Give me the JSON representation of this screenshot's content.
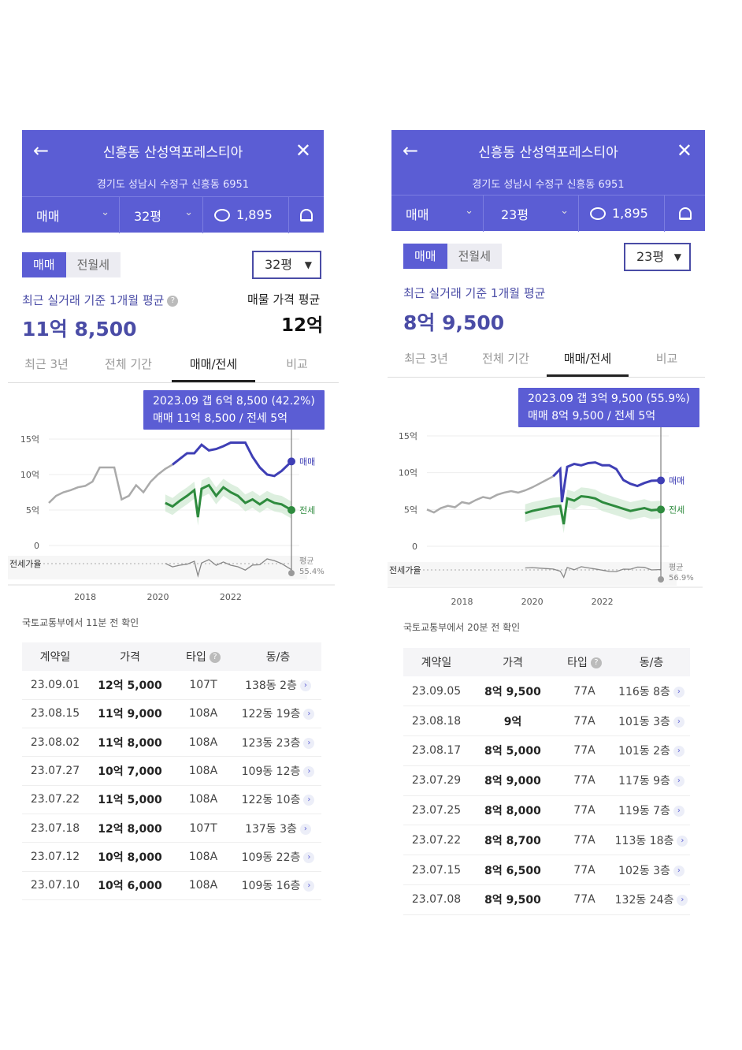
{
  "panels": [
    {
      "header": {
        "title": "신흥동 산성역포레스티아",
        "address": "경기도 성남시 수정구 신흥동 6951",
        "filter_deal": "매매",
        "filter_area": "32평",
        "comment_count": "1,895"
      },
      "toggle": {
        "sale": "매매",
        "lease": "전월세"
      },
      "area_select": "32평",
      "avg_label": "최근 실거래 기준 1개월 평균",
      "avg_price": "11억 8,500",
      "listing_label": "매물 가격 평균",
      "listing_price": "12억",
      "tabs": [
        "최근 3년",
        "전체 기간",
        "매매/전세",
        "비교"
      ],
      "tooltip": {
        "line1": "2023.09  갭 6억 8,500 (42.2%)",
        "line2": "매매 11억 8,500 / 전세 5억"
      },
      "source_note": "국토교통부에서 11분 전 확인",
      "table": {
        "headers": [
          "계약일",
          "가격",
          "타입",
          "동/층"
        ],
        "rows": [
          [
            "23.09.01",
            "12억 5,000",
            "107T",
            "138동 2층"
          ],
          [
            "23.08.15",
            "11억 9,000",
            "108A",
            "122동 19층"
          ],
          [
            "23.08.02",
            "11억 8,000",
            "108A",
            "123동 23층"
          ],
          [
            "23.07.27",
            "10억 7,000",
            "108A",
            "109동 12층"
          ],
          [
            "23.07.22",
            "11억 5,000",
            "108A",
            "122동 10층"
          ],
          [
            "23.07.18",
            "12억 8,000",
            "107T",
            "137동 3층"
          ],
          [
            "23.07.12",
            "10억 8,000",
            "108A",
            "109동 22층"
          ],
          [
            "23.07.10",
            "10억 6,000",
            "108A",
            "109동 16층"
          ]
        ]
      },
      "chart_data": {
        "type": "line",
        "y_tick_labels": [
          "15억",
          "10억",
          "5억",
          "0"
        ],
        "ylim": [
          0,
          15
        ],
        "x_tick_labels": [
          "2018",
          "2020",
          "2022"
        ],
        "ratio_axis_label": "전세가율",
        "ratio_avg_label": "평균",
        "ratio_avg_value": "55.4%",
        "series": [
          {
            "name": "매매",
            "color": "#3f3fb5",
            "x": [
              2017.0,
              2017.2,
              2017.4,
              2017.6,
              2017.8,
              2018.0,
              2018.2,
              2018.4,
              2018.6,
              2018.8,
              2019.0,
              2019.2,
              2019.4,
              2019.6,
              2019.8,
              2020.0,
              2020.2,
              2020.4,
              2020.6,
              2020.8,
              2021.0,
              2021.2,
              2021.4,
              2021.6,
              2021.8,
              2022.0,
              2022.2,
              2022.4,
              2022.6,
              2022.8,
              2023.0,
              2023.2,
              2023.4,
              2023.67
            ],
            "y": [
              6.0,
              7.0,
              7.5,
              7.8,
              8.2,
              8.4,
              9.0,
              11.0,
              11.0,
              11.0,
              6.5,
              7.0,
              8.5,
              7.5,
              9.0,
              10.0,
              10.8,
              11.4,
              12.2,
              13.0,
              13.0,
              14.2,
              13.4,
              13.6,
              14.0,
              14.5,
              14.5,
              14.5,
              12.5,
              11.0,
              10.0,
              9.8,
              10.5,
              11.85
            ]
          },
          {
            "name": "전세",
            "color": "#2e8b3e",
            "x": [
              2020.2,
              2020.4,
              2020.6,
              2020.8,
              2021.0,
              2021.1,
              2021.2,
              2021.4,
              2021.6,
              2021.8,
              2022.0,
              2022.2,
              2022.4,
              2022.6,
              2022.8,
              2023.0,
              2023.2,
              2023.4,
              2023.67
            ],
            "y": [
              6.0,
              5.5,
              6.3,
              7.0,
              7.8,
              4.0,
              8.0,
              8.5,
              7.0,
              8.2,
              7.5,
              7.0,
              6.0,
              6.5,
              5.8,
              6.5,
              6.0,
              5.8,
              5.0
            ]
          }
        ]
      }
    },
    {
      "header": {
        "title": "신흥동 산성역포레스티아",
        "address": "경기도 성남시 수정구 신흥동 6951",
        "filter_deal": "매매",
        "filter_area": "23평",
        "comment_count": "1,895"
      },
      "toggle": {
        "sale": "매매",
        "lease": "전월세"
      },
      "area_select": "23평",
      "avg_label": "최근 실거래 기준 1개월 평균",
      "avg_price": "8억 9,500",
      "tabs": [
        "최근 3년",
        "전체 기간",
        "매매/전세",
        "비교"
      ],
      "tooltip": {
        "line1": "2023.09  갭 3억 9,500 (55.9%)",
        "line2": "매매 8억 9,500 / 전세 5억"
      },
      "source_note": "국토교통부에서 20분 전 확인",
      "table": {
        "headers": [
          "계약일",
          "가격",
          "타입",
          "동/층"
        ],
        "rows": [
          [
            "23.09.05",
            "8억 9,500",
            "77A",
            "116동 8층"
          ],
          [
            "23.08.18",
            "9억",
            "77A",
            "101동 3층"
          ],
          [
            "23.08.17",
            "8억 5,000",
            "77A",
            "101동 2층"
          ],
          [
            "23.07.29",
            "8억 9,000",
            "77A",
            "117동 9층"
          ],
          [
            "23.07.25",
            "8억 8,000",
            "77A",
            "119동 7층"
          ],
          [
            "23.07.22",
            "8억 8,700",
            "77A",
            "113동 18층"
          ],
          [
            "23.07.15",
            "8억 6,500",
            "77A",
            "102동 3층"
          ],
          [
            "23.07.08",
            "8억 9,500",
            "77A",
            "132동 24층"
          ]
        ]
      },
      "chart_data": {
        "type": "line",
        "y_tick_labels": [
          "15억",
          "10억",
          "5억",
          "0"
        ],
        "ylim": [
          0,
          15
        ],
        "x_tick_labels": [
          "2018",
          "2020",
          "2022"
        ],
        "ratio_axis_label": "전세가율",
        "ratio_avg_label": "평균",
        "ratio_avg_value": "56.9%",
        "series": [
          {
            "name": "매매",
            "color": "#3f3fb5",
            "x": [
              2017.0,
              2017.2,
              2017.4,
              2017.6,
              2017.8,
              2018.0,
              2018.2,
              2018.4,
              2018.6,
              2018.8,
              2019.0,
              2019.2,
              2019.4,
              2019.6,
              2019.8,
              2020.0,
              2020.2,
              2020.4,
              2020.6,
              2020.8,
              2020.85,
              2021.0,
              2021.2,
              2021.4,
              2021.6,
              2021.8,
              2022.0,
              2022.2,
              2022.4,
              2022.6,
              2022.8,
              2023.0,
              2023.2,
              2023.4,
              2023.67
            ],
            "y": [
              5.0,
              4.6,
              5.2,
              5.5,
              5.3,
              6.0,
              5.8,
              6.3,
              6.7,
              6.5,
              7.0,
              7.3,
              7.5,
              7.3,
              7.6,
              8.0,
              8.5,
              9.0,
              9.5,
              10.5,
              6.0,
              10.8,
              11.2,
              11.0,
              11.3,
              11.4,
              11.0,
              11.0,
              10.5,
              9.0,
              8.5,
              8.2,
              8.6,
              8.9,
              8.95
            ]
          },
          {
            "name": "전세",
            "color": "#2e8b3e",
            "x": [
              2019.8,
              2020.0,
              2020.2,
              2020.4,
              2020.6,
              2020.8,
              2020.9,
              2021.0,
              2021.2,
              2021.4,
              2021.6,
              2021.8,
              2022.0,
              2022.2,
              2022.4,
              2022.6,
              2022.8,
              2023.0,
              2023.2,
              2023.4,
              2023.67
            ],
            "y": [
              4.5,
              4.8,
              5.0,
              5.2,
              5.4,
              5.5,
              3.0,
              6.5,
              6.2,
              6.8,
              6.7,
              6.5,
              6.0,
              5.7,
              5.4,
              5.1,
              4.8,
              5.0,
              5.2,
              4.9,
              5.0
            ]
          }
        ]
      }
    }
  ]
}
